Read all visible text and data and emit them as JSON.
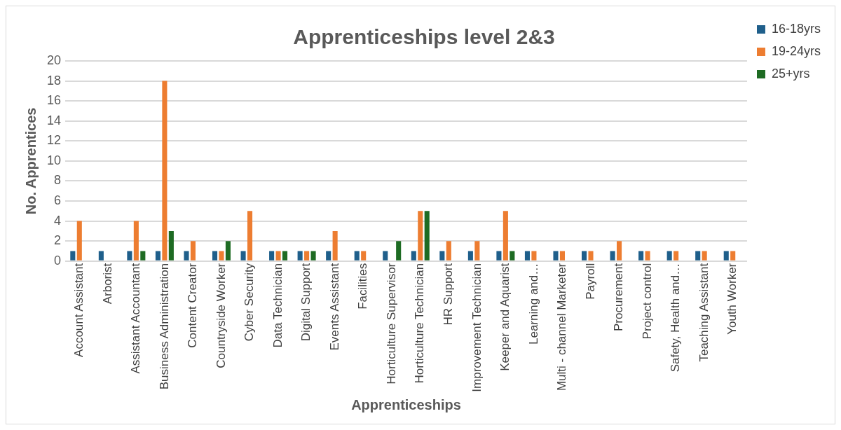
{
  "chart_data": {
    "type": "bar",
    "title": "Apprenticeships level 2&3",
    "xlabel": "Apprenticeships",
    "ylabel": "No. Apprentices",
    "categories": [
      "Account Assistant",
      "Arborist",
      "Assistant Accountant",
      "Business Administration",
      "Content Creator",
      "Countryside Worker",
      "Cyber Security",
      "Data Technician",
      "Digital Support",
      "Events Assistant",
      "Facilities",
      "Horticulture Supervisor",
      "Horticulture Technician",
      "HR Support",
      "Improvement Technician",
      "Keeper and Aquarist",
      "Learning and…",
      "Multi - channel Marketer",
      "Payroll",
      "Procurement",
      "Project control",
      "Safety, Health and…",
      "Teaching Assistant",
      "Youth Worker"
    ],
    "series": [
      {
        "name": "16-18yrs",
        "color": "#1f5f8b",
        "values": [
          1,
          1,
          1,
          1,
          1,
          1,
          1,
          1,
          1,
          1,
          1,
          1,
          1,
          1,
          1,
          1,
          1,
          1,
          1,
          1,
          1,
          1,
          1,
          1
        ]
      },
      {
        "name": "19-24yrs",
        "color": "#ed7d31",
        "values": [
          4,
          null,
          4,
          18,
          2,
          1,
          5,
          1,
          1,
          3,
          1,
          null,
          5,
          2,
          2,
          5,
          1,
          1,
          1,
          2,
          1,
          1,
          1,
          1
        ]
      },
      {
        "name": "25+yrs",
        "color": "#1e6b23",
        "values": [
          null,
          null,
          1,
          3,
          null,
          2,
          null,
          1,
          1,
          null,
          null,
          2,
          5,
          null,
          null,
          1,
          null,
          null,
          null,
          null,
          null,
          null,
          null,
          null
        ]
      }
    ],
    "ylim": [
      0,
      20
    ],
    "yticks": [
      0,
      2,
      4,
      6,
      8,
      10,
      12,
      14,
      16,
      18,
      20
    ],
    "grid": "y",
    "legend": "top right"
  }
}
